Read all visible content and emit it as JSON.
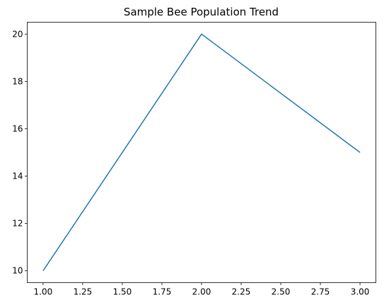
{
  "chart_data": {
    "type": "line",
    "title": "Sample Bee Population Trend",
    "x": [
      1,
      2,
      3
    ],
    "series": [
      {
        "color": "#1f77b4",
        "values": [
          10,
          20,
          15
        ]
      }
    ],
    "xlim": [
      0.9,
      3.1
    ],
    "xticks": [
      {
        "value": 1,
        "label": "1.00"
      },
      {
        "value": 1.25,
        "label": "1.25"
      },
      {
        "value": 1.5,
        "label": "1.50"
      },
      {
        "value": 1.75,
        "label": "1.75"
      },
      {
        "value": 2,
        "label": "2.00"
      },
      {
        "value": 2.25,
        "label": "2.25"
      },
      {
        "value": 2.5,
        "label": "2.50"
      },
      {
        "value": 2.75,
        "label": "2.75"
      },
      {
        "value": 3,
        "label": "3.00"
      }
    ],
    "ylim": [
      9.5,
      20.5
    ],
    "yticks": [
      10,
      12,
      14,
      16,
      18,
      20
    ],
    "grid": false
  }
}
